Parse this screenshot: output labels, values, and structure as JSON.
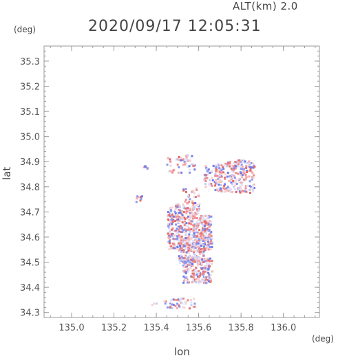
{
  "chart_data": {
    "type": "scatter",
    "header": {
      "altitude": "ALT(km) 2.0",
      "timestamp": "2020/09/17 12:05:31"
    },
    "xlabel": "lon",
    "ylabel": "lat",
    "x_unit": "(deg)",
    "y_unit": "(deg)",
    "xlim": [
      134.87,
      136.17
    ],
    "ylim": [
      34.28,
      35.36
    ],
    "x_ticks": [
      135.0,
      135.2,
      135.4,
      135.6,
      135.8,
      136.0
    ],
    "x_tick_labels": [
      "135.0",
      "135.2",
      "135.4",
      "135.6",
      "135.8",
      "136.0"
    ],
    "y_ticks": [
      34.3,
      34.4,
      34.5,
      34.6,
      34.7,
      34.8,
      34.9,
      35.0,
      35.1,
      35.2,
      35.3
    ],
    "y_tick_labels": [
      "34.3",
      "34.4",
      "34.5",
      "34.6",
      "34.7",
      "34.8",
      "34.9",
      "35.0",
      "35.1",
      "35.2",
      "35.3"
    ],
    "grid": false,
    "colors": {
      "positive": "#e05050",
      "negative": "#5060e0",
      "axis": "#9a9a9a",
      "text": "#444444"
    },
    "clusters": [
      {
        "lon": [
          135.45,
          135.66
        ],
        "lat": [
          34.55,
          34.69
        ],
        "density": 0.8
      },
      {
        "lon": [
          135.5,
          135.62
        ],
        "lat": [
          34.5,
          34.58
        ],
        "density": 0.8
      },
      {
        "lon": [
          135.52,
          135.66
        ],
        "lat": [
          34.42,
          34.52
        ],
        "density": 0.7
      },
      {
        "lon": [
          135.45,
          135.6
        ],
        "lat": [
          34.69,
          34.74
        ],
        "density": 0.6
      },
      {
        "lon": [
          135.67,
          135.86
        ],
        "lat": [
          34.78,
          34.91
        ],
        "density": 0.5
      },
      {
        "lon": [
          135.62,
          135.7
        ],
        "lat": [
          34.8,
          34.89
        ],
        "density": 0.4
      },
      {
        "lon": [
          135.44,
          135.58
        ],
        "lat": [
          34.86,
          34.93
        ],
        "density": 0.25
      },
      {
        "lon": [
          135.43,
          135.58
        ],
        "lat": [
          34.32,
          34.36
        ],
        "density": 0.4
      },
      {
        "lon": [
          135.52,
          135.6
        ],
        "lat": [
          34.71,
          34.8
        ],
        "density": 0.25
      },
      {
        "lon": [
          135.33,
          135.36
        ],
        "lat": [
          34.87,
          34.89
        ],
        "density": 0.5
      },
      {
        "lon": [
          135.3,
          135.33
        ],
        "lat": [
          34.74,
          34.77
        ],
        "density": 0.5
      },
      {
        "lon": [
          135.37,
          135.4
        ],
        "lat": [
          34.33,
          34.34
        ],
        "density": 0.5
      }
    ]
  }
}
